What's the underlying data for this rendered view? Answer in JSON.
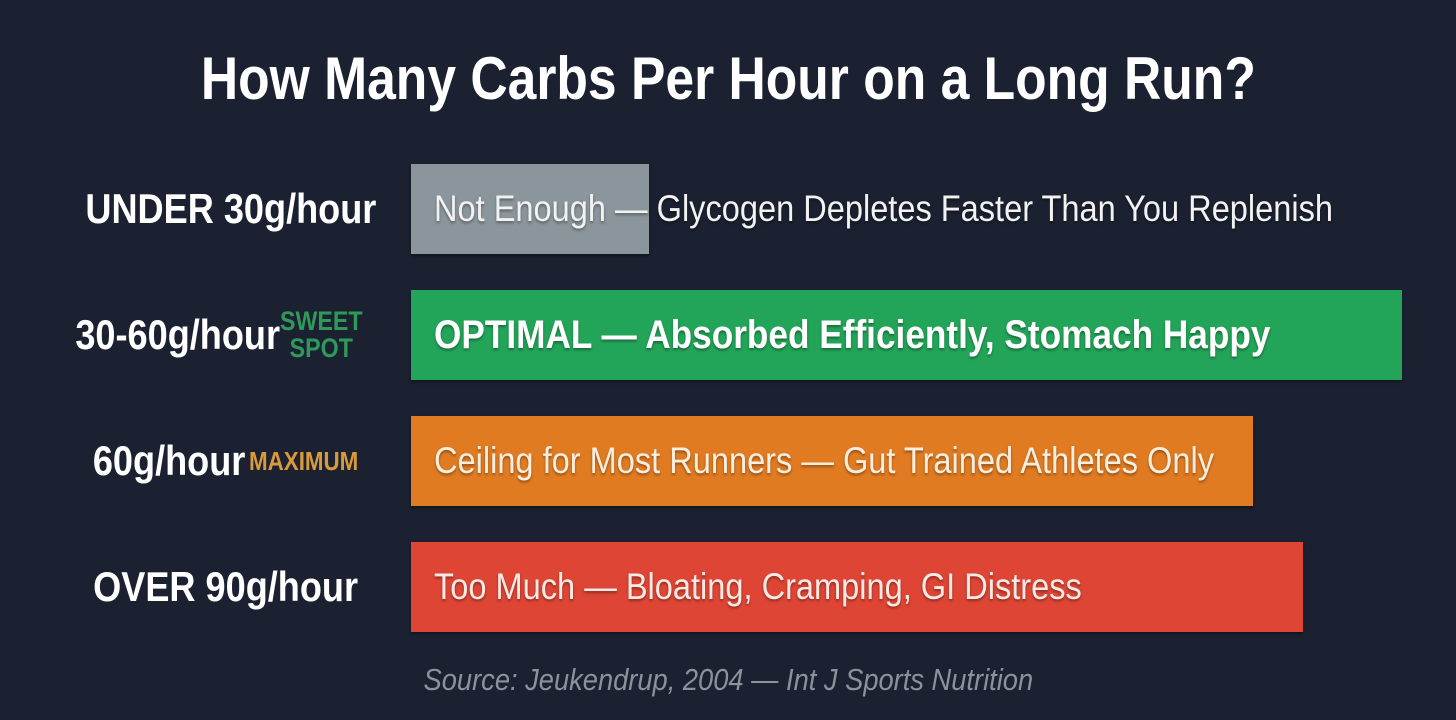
{
  "title": "How Many Carbs Per Hour on a Long Run?",
  "source": "Source: Jeukendrup, 2004 — Int J Sports Nutrition",
  "chart_data": {
    "type": "bar",
    "orientation": "horizontal",
    "categories": [
      "UNDER 30g/hour",
      "30-60g/hour",
      "60g/hour",
      "OVER 90g/hour"
    ],
    "tags": [
      "",
      "SWEET SPOT",
      "MAXIMUM",
      ""
    ],
    "descriptions": [
      "Not Enough — Glycogen Depletes Faster Than You Replenish",
      "OPTIMAL — Absorbed Efficiently, Stomach Happy",
      "Ceiling for Most Runners — Gut Trained Athletes Only",
      "Too Much — Bloating, Cramping, GI Distress"
    ],
    "bar_fill_fraction": [
      0.24,
      1.0,
      0.85,
      0.9
    ],
    "colors": [
      "#8a969c",
      "#22a559",
      "#e07b22",
      "#de4535"
    ],
    "tag_colors": [
      "",
      "#2e9a5a",
      "#d99a3c",
      ""
    ],
    "axes": "none",
    "grid": false
  }
}
